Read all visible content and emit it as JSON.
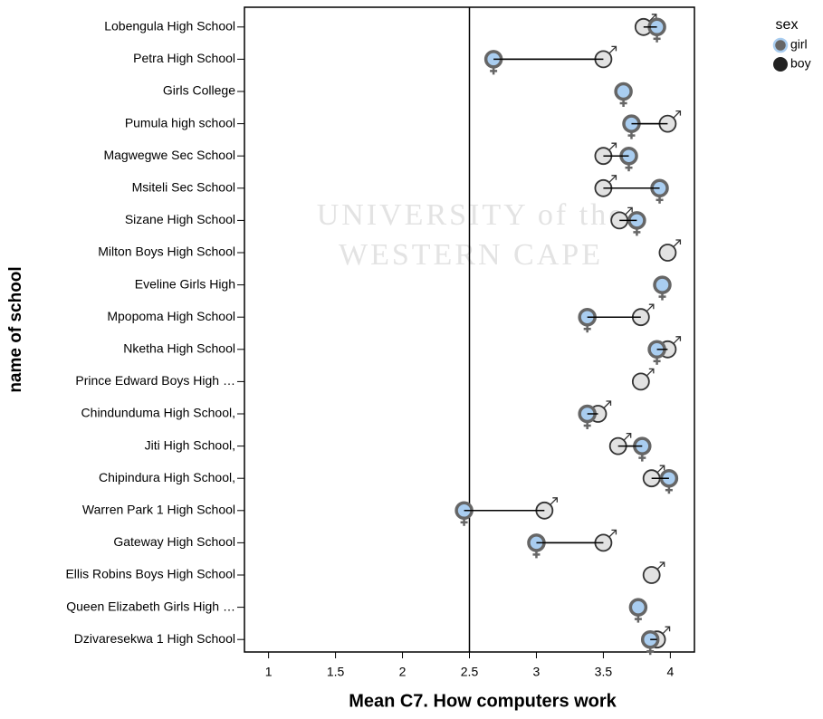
{
  "chart_data": {
    "type": "dumbbell",
    "xlabel": "Mean C7. How computers work",
    "ylabel": "name of school",
    "watermark": [
      "UNIVERSITY of the",
      "WESTERN CAPE"
    ],
    "legend_title": "sex",
    "legend": "top-right",
    "categories": [
      "Lobengula High School",
      "Petra High School",
      "Girls College",
      "Pumula high school",
      "Magwegwe Sec School ",
      "Msiteli Sec School",
      "Sizane High School",
      "Milton Boys High School",
      "Eveline Girls High",
      "Mpopoma High School",
      "Nketha High School",
      "Prince Edward Boys High …",
      "Chindunduma High School,",
      "Jiti High School,",
      "Chipindura High School,",
      "Warren Park 1 High School",
      "Gateway High School ",
      "Ellis Robins Boys High School",
      "Queen Elizabeth Girls High …",
      "Dzivaresekwa 1 High School"
    ],
    "series": [
      {
        "name": "girl",
        "color": "#a9cdf0",
        "stroke": "#666666",
        "values": [
          3.9,
          2.68,
          3.65,
          3.71,
          3.69,
          3.92,
          3.75,
          null,
          3.94,
          3.38,
          3.9,
          null,
          3.38,
          3.79,
          3.99,
          2.46,
          3.0,
          null,
          3.76,
          3.85
        ]
      },
      {
        "name": "boy",
        "color": "#e2e2e2",
        "stroke": "#333333",
        "values": [
          3.8,
          3.5,
          null,
          3.98,
          3.5,
          3.5,
          3.62,
          3.98,
          null,
          3.78,
          3.98,
          3.78,
          3.46,
          3.61,
          3.86,
          3.06,
          3.5,
          3.86,
          null,
          3.9
        ]
      }
    ],
    "xlim": [
      0.82,
      4.18
    ],
    "xticks": [
      1,
      1.5,
      2,
      2.5,
      3,
      3.5,
      4
    ],
    "reference_line": 2.5
  }
}
